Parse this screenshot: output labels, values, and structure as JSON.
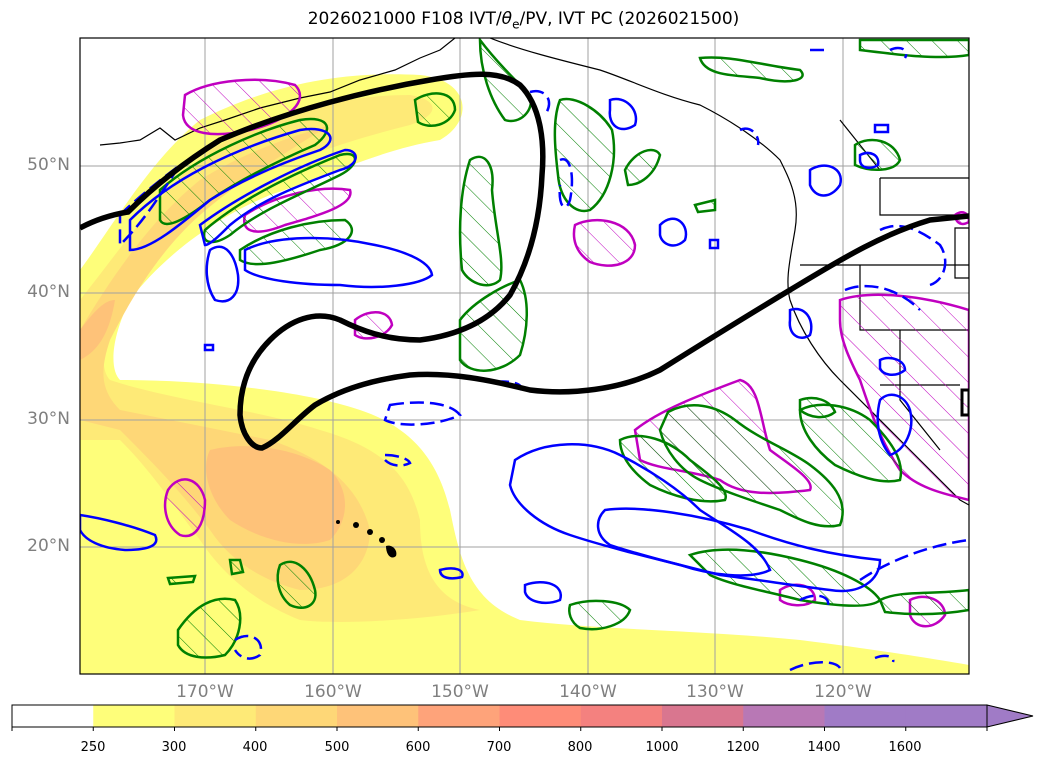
{
  "title": {
    "prefix": "2026021000 F108 IVT/",
    "theta_symbol": "θ",
    "theta_sub": "e",
    "suffix": "/PV, IVT PC (2026021500)"
  },
  "map": {
    "lat_labels": [
      "50°N",
      "40°N",
      "30°N",
      "20°N"
    ],
    "lon_labels": [
      "170°W",
      "160°W",
      "150°W",
      "140°W",
      "130°W",
      "120°W"
    ]
  },
  "colorbar": {
    "ticks": [
      "250",
      "300",
      "400",
      "500",
      "600",
      "700",
      "800",
      "1000",
      "1200",
      "1400",
      "1600"
    ],
    "colors": [
      "#ffffff",
      "#fefe7a",
      "#feea77",
      "#fed777",
      "#fec279",
      "#fea37a",
      "#fe8c78",
      "#f4817f",
      "#d9768f",
      "#b878b5",
      "#a07bc6"
    ]
  },
  "colors": {
    "ivt_pc_contour": "#000000",
    "theta_e_contour": "#008000",
    "pv_contour": "#0000ff",
    "pv_high_contour": "#c000c0",
    "coastline": "#000000"
  }
}
